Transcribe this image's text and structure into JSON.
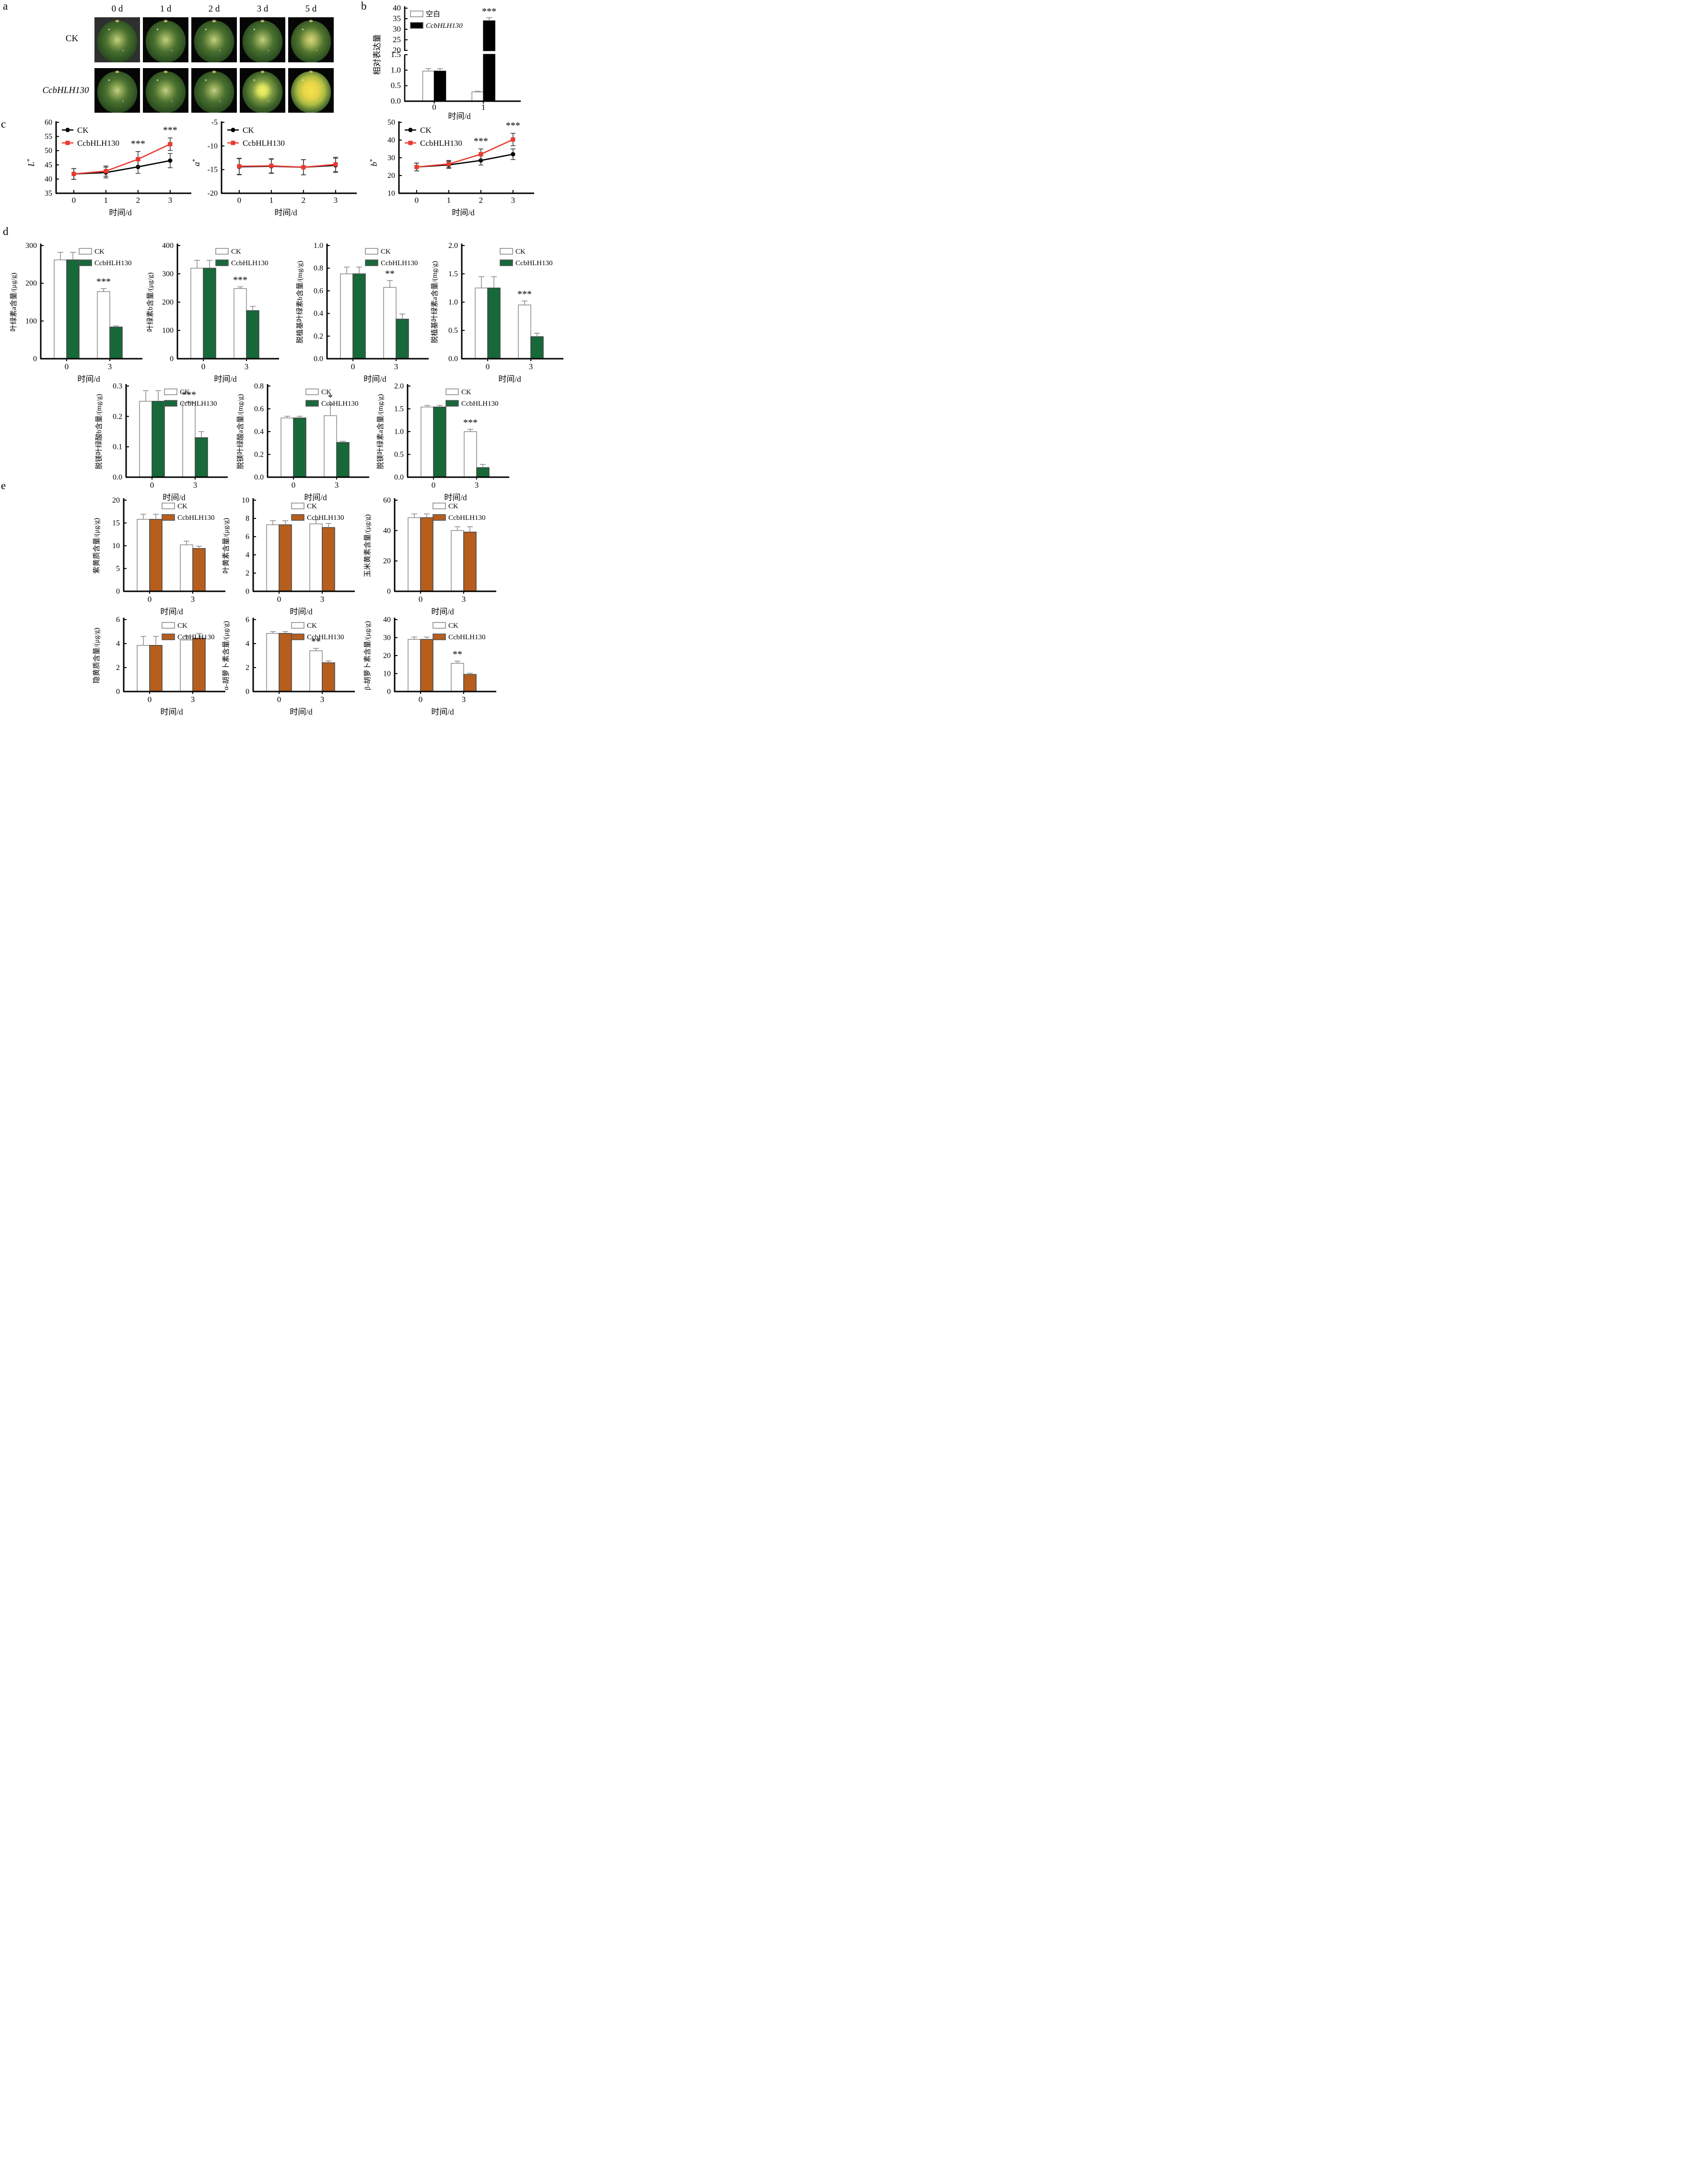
{
  "panel_letters": {
    "a": "a",
    "b": "b",
    "c": "c",
    "d": "d",
    "e": "e"
  },
  "panel_a": {
    "col_labels": [
      "0 d",
      "1 d",
      "2 d",
      "3 d",
      "5 d"
    ],
    "row_labels": [
      "CK",
      "CcbHLH130"
    ],
    "photo_tones": [
      [
        "g",
        "g",
        "g",
        "g",
        "gy"
      ],
      [
        "g",
        "g",
        "g",
        "y1",
        "y2"
      ]
    ],
    "photo_bg": [
      [
        "#2f2f2f",
        "#060606",
        "#060606",
        "#060606",
        "#060606"
      ],
      [
        "#060606",
        "#060606",
        "#060606",
        "#060606",
        "#060606"
      ]
    ]
  },
  "colors": {
    "white": "#ffffff",
    "black": "#000000",
    "green": "#17693a",
    "orange": "#b55e1d",
    "red": "#e8392f",
    "err": "#8a8a8a"
  },
  "chart_data": [
    {
      "id": "b",
      "type": "bar",
      "broken_axis": true,
      "panel": "b",
      "ylabel": "相对表达量",
      "xlabel": "时间/d",
      "categories": [
        "0",
        "1"
      ],
      "legend": [
        {
          "label": "空白",
          "italic": false
        },
        {
          "label": "CcbHLH130",
          "italic": true
        }
      ],
      "bar_colors": [
        "white",
        "black"
      ],
      "axis_top": {
        "ylim": [
          20,
          40
        ],
        "yticks": [
          20,
          25,
          30,
          35,
          40
        ],
        "dec": 0
      },
      "axis_bottom": {
        "ylim": [
          0,
          1.5
        ],
        "yticks": [
          0,
          0.5,
          1,
          1.5
        ],
        "dec": 1
      },
      "series": [
        {
          "name": "空白",
          "values": [
            0.97,
            0.3
          ],
          "errors": [
            0.08,
            0.02
          ]
        },
        {
          "name": "CcbHLH130",
          "values": [
            0.97,
            34
          ],
          "errors": [
            0.08,
            1.5
          ]
        }
      ],
      "sig": [
        {
          "cat": 1,
          "series": 1,
          "label": "***"
        }
      ]
    },
    {
      "id": "c1",
      "type": "line",
      "panel": "c",
      "ylabel": "L*",
      "xlabel": "时间/d",
      "x": [
        "0",
        "1",
        "2",
        "3"
      ],
      "ylim": [
        35,
        60
      ],
      "yticks": [
        35,
        40,
        45,
        50,
        55,
        60
      ],
      "dec": 0,
      "legend": [
        {
          "label": "CK"
        },
        {
          "label": "CcbHLH130"
        }
      ],
      "series": [
        {
          "name": "CK",
          "color": "black",
          "marker": "circle",
          "values": [
            41.8,
            42.3,
            44.3,
            46.5
          ],
          "errors": [
            1.9,
            1.9,
            2.3,
            2.5
          ]
        },
        {
          "name": "CcbHLH130",
          "color": "red",
          "marker": "square",
          "values": [
            41.8,
            42.8,
            47,
            52.3
          ],
          "errors": [
            1.9,
            1.8,
            2.7,
            2.2
          ]
        }
      ],
      "sig": [
        {
          "i": 2,
          "series": 1,
          "label": "***"
        },
        {
          "i": 3,
          "series": 1,
          "label": "***"
        }
      ]
    },
    {
      "id": "c2",
      "type": "line",
      "panel": "c",
      "ylabel": "a*",
      "xlabel": "时间/d",
      "x": [
        "0",
        "1",
        "2",
        "3"
      ],
      "ylim": [
        -20,
        -5
      ],
      "yticks": [
        -20,
        -15,
        -10,
        -5
      ],
      "dec": 0,
      "legend": [
        {
          "label": "CK"
        },
        {
          "label": "CcbHLH130"
        }
      ],
      "series": [
        {
          "name": "CK",
          "color": "black",
          "marker": "circle",
          "values": [
            -14.4,
            -14.3,
            -14.5,
            -14.1
          ],
          "errors": [
            1.7,
            1.5,
            1.6,
            1.5
          ]
        },
        {
          "name": "CcbHLH130",
          "color": "red",
          "marker": "square",
          "values": [
            -14.3,
            -14.2,
            -14.5,
            -13.9
          ],
          "errors": [
            1.7,
            1.5,
            1.6,
            1.5
          ]
        }
      ],
      "sig": []
    },
    {
      "id": "c3",
      "type": "line",
      "panel": "c",
      "ylabel": "b*",
      "xlabel": "时间/d",
      "x": [
        "0",
        "1",
        "2",
        "3"
      ],
      "ylim": [
        10,
        50
      ],
      "yticks": [
        10,
        20,
        30,
        40,
        50
      ],
      "dec": 0,
      "legend": [
        {
          "label": "CK"
        },
        {
          "label": "CcbHLH130"
        }
      ],
      "series": [
        {
          "name": "CK",
          "color": "black",
          "marker": "circle",
          "values": [
            24.8,
            26,
            28.5,
            32
          ],
          "errors": [
            2.2,
            2,
            2.6,
            3
          ]
        },
        {
          "name": "CcbHLH130",
          "color": "red",
          "marker": "square",
          "values": [
            24.8,
            26.5,
            32,
            40.3
          ],
          "errors": [
            2.2,
            2,
            3,
            3.5
          ]
        }
      ],
      "sig": [
        {
          "i": 2,
          "series": 1,
          "label": "***"
        },
        {
          "i": 3,
          "series": 1,
          "label": "***"
        }
      ]
    },
    {
      "id": "d1",
      "type": "bar",
      "panel": "d",
      "ylabel": "叶绿素a含量/(μg/g)",
      "xlabel": "时间/d",
      "categories": [
        "0",
        "3"
      ],
      "ylim": [
        0,
        300
      ],
      "yticks": [
        0,
        100,
        200,
        300
      ],
      "dec": 0,
      "legend": [
        {
          "label": "CK"
        },
        {
          "label": "CcbHLH130"
        }
      ],
      "bar_colors": [
        "white",
        "green"
      ],
      "series": [
        {
          "name": "CK",
          "values": [
            262,
            178
          ],
          "errors": [
            20,
            8
          ]
        },
        {
          "name": "CcbHLH130",
          "values": [
            262,
            84
          ],
          "errors": [
            20,
            3
          ]
        }
      ],
      "sig": [
        {
          "cat": 1,
          "series": 0,
          "label": "***"
        }
      ]
    },
    {
      "id": "d2",
      "type": "bar",
      "panel": "d",
      "ylabel": "叶绿素b含量/(μg/g)",
      "xlabel": "时间/d",
      "categories": [
        "0",
        "3"
      ],
      "ylim": [
        0,
        400
      ],
      "yticks": [
        0,
        100,
        200,
        300,
        400
      ],
      "dec": 0,
      "legend": [
        {
          "label": "CK"
        },
        {
          "label": "CcbHLH130"
        }
      ],
      "bar_colors": [
        "white",
        "green"
      ],
      "series": [
        {
          "name": "CK",
          "values": [
            320,
            248
          ],
          "errors": [
            28,
            6
          ]
        },
        {
          "name": "CcbHLH130",
          "values": [
            320,
            170
          ],
          "errors": [
            28,
            15
          ]
        }
      ],
      "sig": [
        {
          "cat": 1,
          "series": 0,
          "label": "***"
        }
      ]
    },
    {
      "id": "d3",
      "type": "bar",
      "panel": "d",
      "ylabel": "脱植基叶绿素b含量/(mg/g)",
      "xlabel": "时间/d",
      "categories": [
        "0",
        "3"
      ],
      "ylim": [
        0,
        1
      ],
      "yticks": [
        0,
        0.2,
        0.4,
        0.6,
        0.8,
        1
      ],
      "dec": 1,
      "legend": [
        {
          "label": "CK"
        },
        {
          "label": "CcbHLH130"
        }
      ],
      "bar_colors": [
        "white",
        "green"
      ],
      "series": [
        {
          "name": "CK",
          "values": [
            0.75,
            0.63
          ],
          "errors": [
            0.06,
            0.06
          ]
        },
        {
          "name": "CcbHLH130",
          "values": [
            0.75,
            0.35
          ],
          "errors": [
            0.06,
            0.045
          ]
        }
      ],
      "sig": [
        {
          "cat": 1,
          "series": 0,
          "label": "**"
        }
      ]
    },
    {
      "id": "d4",
      "type": "bar",
      "panel": "d",
      "ylabel": "脱植基叶绿素a含量/(mg/g)",
      "xlabel": "时间/d",
      "categories": [
        "0",
        "3"
      ],
      "ylim": [
        0,
        2
      ],
      "yticks": [
        0,
        0.5,
        1,
        1.5,
        2
      ],
      "dec": 1,
      "legend": [
        {
          "label": "CK"
        },
        {
          "label": "CcbHLH130"
        }
      ],
      "bar_colors": [
        "white",
        "green"
      ],
      "series": [
        {
          "name": "CK",
          "values": [
            1.25,
            0.95
          ],
          "errors": [
            0.2,
            0.07
          ]
        },
        {
          "name": "CcbHLH130",
          "values": [
            1.25,
            0.39
          ],
          "errors": [
            0.2,
            0.06
          ]
        }
      ],
      "sig": [
        {
          "cat": 1,
          "series": 0,
          "label": "***"
        }
      ]
    },
    {
      "id": "d5",
      "type": "bar",
      "panel": "d",
      "ylabel": "脱镁叶绿酸b含量/(mg/g)",
      "xlabel": "时间/d",
      "categories": [
        "0",
        "3"
      ],
      "ylim": [
        0,
        0.3
      ],
      "yticks": [
        0,
        0.1,
        0.2,
        0.3
      ],
      "dec": 1,
      "legend": [
        {
          "label": "CK"
        },
        {
          "label": "CcbHLH130"
        }
      ],
      "bar_colors": [
        "white",
        "green"
      ],
      "series": [
        {
          "name": "CK",
          "values": [
            0.25,
            0.245
          ],
          "errors": [
            0.035,
            0.004
          ]
        },
        {
          "name": "CcbHLH130",
          "values": [
            0.25,
            0.13
          ],
          "errors": [
            0.035,
            0.02
          ]
        }
      ],
      "sig": [
        {
          "cat": 1,
          "series": 0,
          "label": "***"
        }
      ]
    },
    {
      "id": "d6",
      "type": "bar",
      "panel": "d",
      "ylabel": "脱镁叶绿酸a含量/(mg/g)",
      "xlabel": "时间/d",
      "categories": [
        "0",
        "3"
      ],
      "ylim": [
        0,
        0.8
      ],
      "yticks": [
        0,
        0.2,
        0.4,
        0.6,
        0.8
      ],
      "dec": 1,
      "legend": [
        {
          "label": "CK"
        },
        {
          "label": "CcbHLH130"
        }
      ],
      "bar_colors": [
        "white",
        "green"
      ],
      "series": [
        {
          "name": "CK",
          "values": [
            0.52,
            0.54
          ],
          "errors": [
            0.015,
            0.1
          ]
        },
        {
          "name": "CcbHLH130",
          "values": [
            0.52,
            0.305
          ],
          "errors": [
            0.015,
            0.01
          ]
        }
      ],
      "sig": [
        {
          "cat": 1,
          "series": 0,
          "label": "*"
        }
      ]
    },
    {
      "id": "d7",
      "type": "bar",
      "panel": "d",
      "ylabel": "脱镁叶绿素a含量/(mg/g)",
      "xlabel": "时间/d",
      "categories": [
        "0",
        "3"
      ],
      "ylim": [
        0,
        2
      ],
      "yticks": [
        0,
        0.5,
        1,
        1.5,
        2
      ],
      "dec": 1,
      "legend": [
        {
          "label": "CK"
        },
        {
          "label": "CcbHLH130"
        }
      ],
      "bar_colors": [
        "white",
        "green"
      ],
      "series": [
        {
          "name": "CK",
          "values": [
            1.54,
            1
          ],
          "errors": [
            0.035,
            0.05
          ]
        },
        {
          "name": "CcbHLH130",
          "values": [
            1.54,
            0.21
          ],
          "errors": [
            0.035,
            0.07
          ]
        }
      ],
      "sig": [
        {
          "cat": 1,
          "series": 0,
          "label": "***"
        }
      ]
    },
    {
      "id": "e1",
      "type": "bar",
      "panel": "e",
      "ylabel": "紫黄质含量/(μg/g)",
      "xlabel": "时间/d",
      "categories": [
        "0",
        "3"
      ],
      "ylim": [
        0,
        20
      ],
      "yticks": [
        0,
        5,
        10,
        15,
        20
      ],
      "dec": 0,
      "legend": [
        {
          "label": "CK"
        },
        {
          "label": "CcbHLH130"
        }
      ],
      "bar_colors": [
        "white",
        "orange"
      ],
      "series": [
        {
          "name": "CK",
          "values": [
            15.8,
            10.2
          ],
          "errors": [
            1.1,
            0.8
          ]
        },
        {
          "name": "CcbHLH130",
          "values": [
            15.8,
            9.4
          ],
          "errors": [
            1.1,
            0.5
          ]
        }
      ],
      "sig": []
    },
    {
      "id": "e2",
      "type": "bar",
      "panel": "e",
      "ylabel": "叶黄素含量/(μg/g)",
      "xlabel": "时间/d",
      "categories": [
        "0",
        "3"
      ],
      "ylim": [
        0,
        10
      ],
      "yticks": [
        0,
        2,
        4,
        6,
        8,
        10
      ],
      "dec": 0,
      "legend": [
        {
          "label": "CK"
        },
        {
          "label": "CcbHLH130"
        }
      ],
      "bar_colors": [
        "white",
        "orange"
      ],
      "series": [
        {
          "name": "CK",
          "values": [
            7.3,
            7.4
          ],
          "errors": [
            0.45,
            0.45
          ]
        },
        {
          "name": "CcbHLH130",
          "values": [
            7.3,
            7
          ],
          "errors": [
            0.45,
            0.45
          ]
        }
      ],
      "sig": []
    },
    {
      "id": "e3",
      "type": "bar",
      "panel": "e",
      "ylabel": "玉米黄素含量/(μg/g)",
      "xlabel": "时间/d",
      "categories": [
        "0",
        "3"
      ],
      "ylim": [
        0,
        60
      ],
      "yticks": [
        0,
        20,
        40,
        60
      ],
      "dec": 0,
      "legend": [
        {
          "label": "CK"
        },
        {
          "label": "CcbHLH130"
        }
      ],
      "bar_colors": [
        "white",
        "orange"
      ],
      "series": [
        {
          "name": "CK",
          "values": [
            48.5,
            40
          ],
          "errors": [
            2.5,
            2.5
          ]
        },
        {
          "name": "CcbHLH130",
          "values": [
            48.5,
            39
          ],
          "errors": [
            2.5,
            3.5
          ]
        }
      ],
      "sig": []
    },
    {
      "id": "e4",
      "type": "bar",
      "panel": "e",
      "ylabel": "隐黄质含量/(μg/g)",
      "xlabel": "时间/d",
      "categories": [
        "0",
        "3"
      ],
      "ylim": [
        0,
        6
      ],
      "yticks": [
        0,
        2,
        4,
        6
      ],
      "dec": 0,
      "legend": [
        {
          "label": "CK"
        },
        {
          "label": "CcbHLH130"
        }
      ],
      "bar_colors": [
        "white",
        "orange"
      ],
      "series": [
        {
          "name": "CK",
          "values": [
            3.85,
            4.3
          ],
          "errors": [
            0.75,
            0.35
          ]
        },
        {
          "name": "CcbHLH130",
          "values": [
            3.85,
            4.45
          ],
          "errors": [
            0.75,
            0.4
          ]
        }
      ],
      "sig": []
    },
    {
      "id": "e5",
      "type": "bar",
      "panel": "e",
      "ylabel": "α-胡萝卜素含量/(μg/g)",
      "xlabel": "时间/d",
      "categories": [
        "0",
        "3"
      ],
      "ylim": [
        0,
        6
      ],
      "yticks": [
        0,
        2,
        4,
        6
      ],
      "dec": 0,
      "legend": [
        {
          "label": "CK"
        },
        {
          "label": "CcbHLH130"
        }
      ],
      "bar_colors": [
        "white",
        "orange"
      ],
      "series": [
        {
          "name": "CK",
          "values": [
            4.85,
            3.4
          ],
          "errors": [
            0.15,
            0.2
          ]
        },
        {
          "name": "CcbHLH130",
          "values": [
            4.85,
            2.4
          ],
          "errors": [
            0.15,
            0.15
          ]
        }
      ],
      "sig": [
        {
          "cat": 1,
          "series": 0,
          "label": "**"
        }
      ]
    },
    {
      "id": "e6",
      "type": "bar",
      "panel": "e",
      "ylabel": "β-胡萝卜素含量/(μg/g)",
      "xlabel": "时间/d",
      "categories": [
        "0",
        "3"
      ],
      "ylim": [
        0,
        40
      ],
      "yticks": [
        0,
        10,
        20,
        30,
        40
      ],
      "dec": 0,
      "legend": [
        {
          "label": "CK"
        },
        {
          "label": "CcbHLH130"
        }
      ],
      "bar_colors": [
        "white",
        "orange"
      ],
      "series": [
        {
          "name": "CK",
          "values": [
            29,
            15.7
          ],
          "errors": [
            1.3,
            1.2
          ]
        },
        {
          "name": "CcbHLH130",
          "values": [
            29,
            9.5
          ],
          "errors": [
            1.3,
            0.7
          ]
        }
      ],
      "sig": [
        {
          "cat": 1,
          "series": 0,
          "label": "**"
        }
      ]
    }
  ]
}
